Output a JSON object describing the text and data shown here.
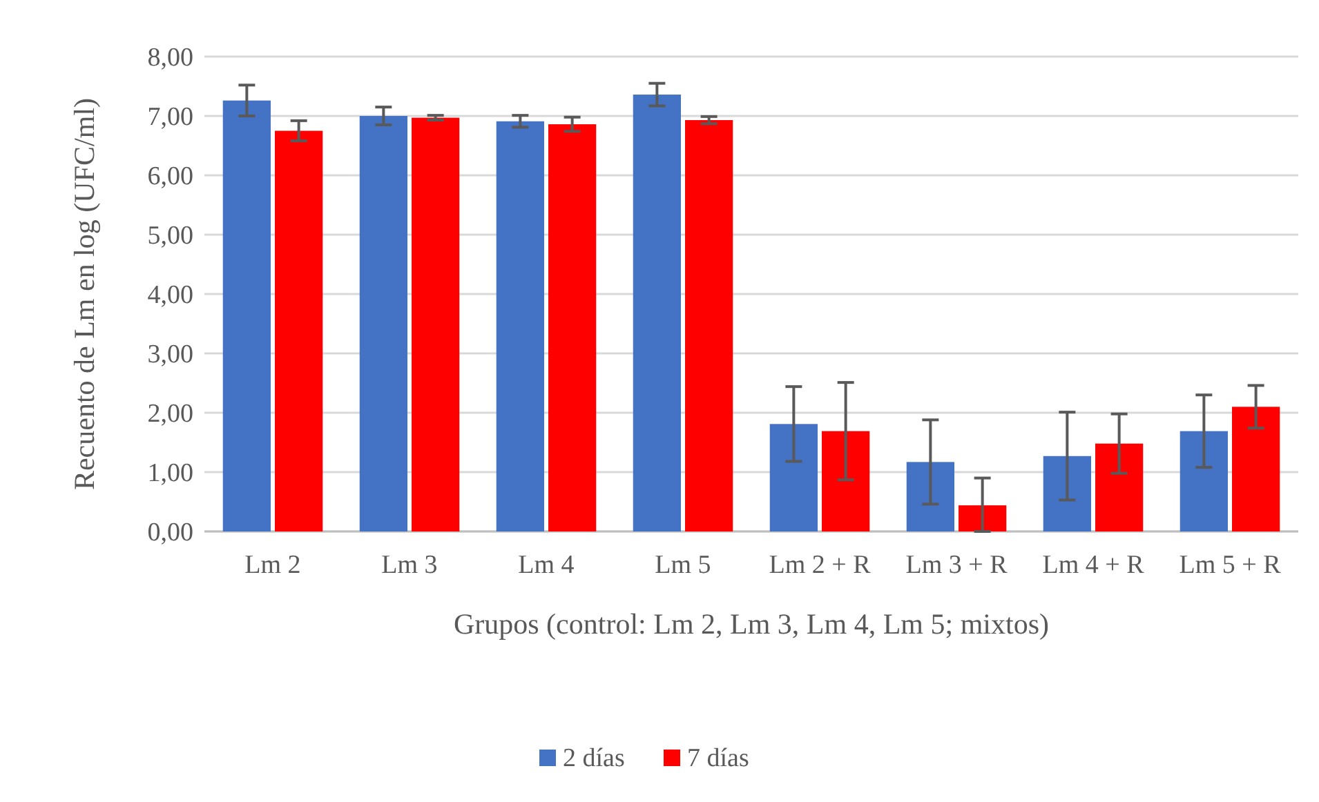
{
  "chart_data": {
    "type": "bar",
    "xlabel": "Grupos (control: Lm 2, Lm 3, Lm 4, Lm 5; mixtos)",
    "ylabel": "Recuento de Lm en log (UFC/ml)",
    "categories": [
      "Lm 2",
      "Lm 3",
      "Lm 4",
      "Lm 5",
      "Lm 2 + R",
      "Lm 3 + R",
      "Lm 4 + R",
      "Lm 5 + R"
    ],
    "series": [
      {
        "name": "2 días",
        "color": "#4472c4",
        "values": [
          7.26,
          7.0,
          6.91,
          7.36,
          1.81,
          1.17,
          1.27,
          1.69
        ],
        "errors": [
          0.26,
          0.15,
          0.1,
          0.19,
          0.63,
          0.71,
          0.74,
          0.61
        ]
      },
      {
        "name": "7 días",
        "color": "#ff0000",
        "values": [
          6.75,
          6.97,
          6.86,
          6.93,
          1.69,
          0.44,
          1.48,
          2.1
        ],
        "errors": [
          0.17,
          0.04,
          0.12,
          0.06,
          0.82,
          [
            0.44,
            0.46
          ],
          0.5,
          0.36
        ]
      }
    ],
    "ylim": [
      0,
      8
    ],
    "yticks": [
      {
        "value": 0,
        "label": "0,00"
      },
      {
        "value": 1,
        "label": "1,00"
      },
      {
        "value": 2,
        "label": "2,00"
      },
      {
        "value": 3,
        "label": "3,00"
      },
      {
        "value": 4,
        "label": "4,00"
      },
      {
        "value": 5,
        "label": "5,00"
      },
      {
        "value": 6,
        "label": "6,00"
      },
      {
        "value": 7,
        "label": "7,00"
      },
      {
        "value": 8,
        "label": "8,00"
      }
    ],
    "grid": "y",
    "legend": "bottom"
  }
}
